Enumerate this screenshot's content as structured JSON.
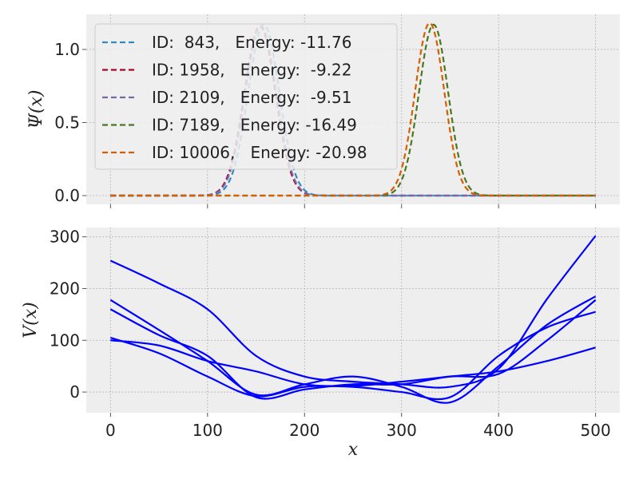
{
  "chart_data": [
    {
      "type": "line",
      "title": "",
      "ylabel": "Ψ(x)",
      "xlabel": "",
      "xlim": [
        -25,
        525
      ],
      "ylim": [
        -0.06,
        1.24
      ],
      "xticks": [
        0,
        100,
        200,
        300,
        400,
        500
      ],
      "yticks": [
        0.0,
        0.5,
        1.0
      ],
      "ytick_labels": [
        "0.0",
        "0.5",
        "1.0"
      ],
      "grid": true,
      "legend_position": "top-left",
      "series": [
        {
          "name": "ID:  843,   Energy: -11.76",
          "color": "#348ABD",
          "style": "dashed",
          "center": 158,
          "width": 16,
          "peak": 1.17
        },
        {
          "name": "ID: 1958,   Energy:  -9.22",
          "color": "#A60628",
          "style": "dashed",
          "center": 154,
          "width": 16,
          "peak": 1.16
        },
        {
          "name": "ID: 2109,   Energy:  -9.51",
          "color": "#7A68A6",
          "style": "dashed",
          "center": 155,
          "width": 16,
          "peak": 1.16
        },
        {
          "name": "ID: 7189,   Energy: -16.49",
          "color": "#467821",
          "style": "dashed",
          "center": 333,
          "width": 15,
          "peak": 1.17
        },
        {
          "name": "ID: 10006,   Energy: -20.98",
          "color": "#D55E00",
          "style": "dashed",
          "center": 329,
          "width": 15,
          "peak": 1.18
        }
      ]
    },
    {
      "type": "line",
      "title": "",
      "xlabel": "x",
      "ylabel": "V(x)",
      "xlim": [
        -25,
        525
      ],
      "ylim": [
        -40,
        318
      ],
      "xticks": [
        0,
        100,
        200,
        300,
        400,
        500
      ],
      "yticks": [
        0,
        100,
        200,
        300
      ],
      "grid": true,
      "color": "#0000FF",
      "x": [
        0,
        50,
        100,
        150,
        200,
        250,
        300,
        350,
        400,
        450,
        500
      ],
      "series": [
        {
          "values": [
            254,
            210,
            160,
            70,
            30,
            20,
            15,
            10,
            45,
            180,
            302
          ]
        },
        {
          "values": [
            178,
            120,
            60,
            -5,
            15,
            30,
            10,
            -20,
            50,
            130,
            185
          ]
        },
        {
          "values": [
            160,
            110,
            70,
            -10,
            5,
            15,
            15,
            30,
            35,
            100,
            178
          ]
        },
        {
          "values": [
            105,
            75,
            30,
            -8,
            10,
            10,
            0,
            -10,
            70,
            125,
            155
          ]
        },
        {
          "values": [
            100,
            90,
            60,
            40,
            15,
            12,
            20,
            30,
            40,
            60,
            86
          ]
        }
      ]
    }
  ]
}
